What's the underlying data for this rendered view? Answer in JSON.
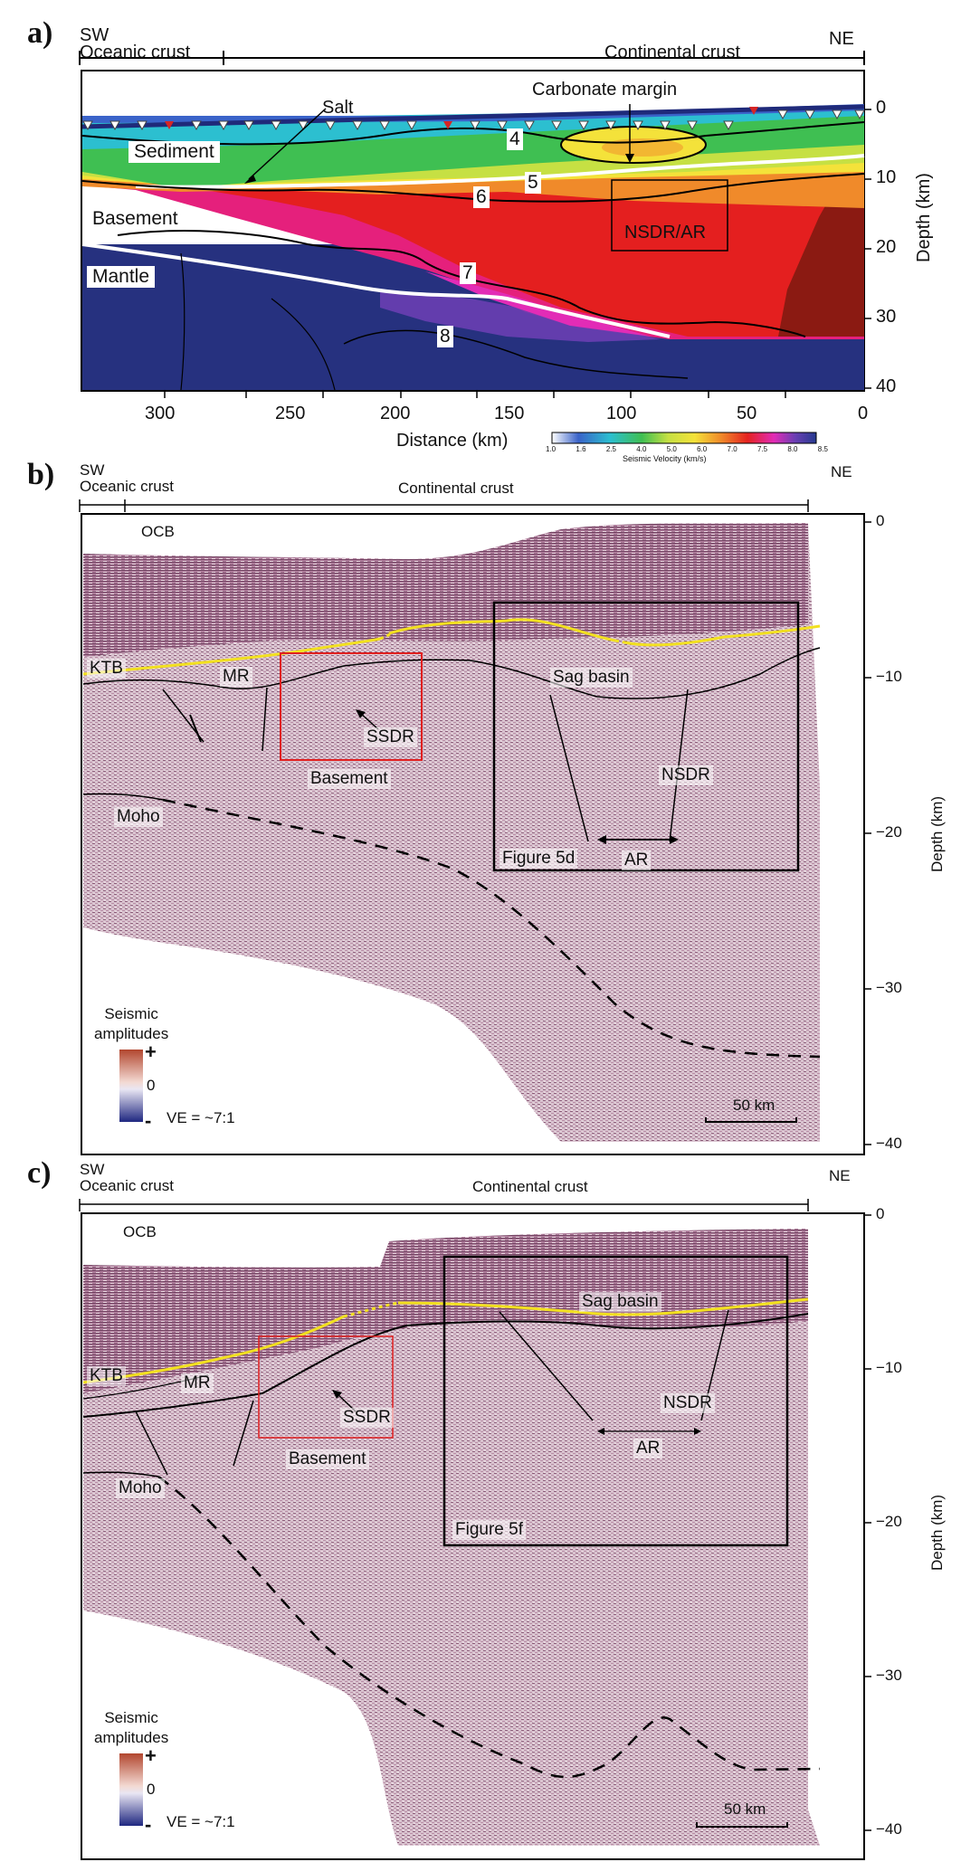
{
  "panels": {
    "a": {
      "letter": "a)",
      "sw": "SW",
      "ne": "NE",
      "oceanic": "Oceanic crust",
      "continental": "Continental crust",
      "salt": "Salt",
      "carbonate": "Carbonate margin",
      "sediment": "Sediment",
      "basement": "Basement",
      "mantle": "Mantle",
      "nsdr_ar": "NSDR/AR",
      "contours": [
        "4",
        "5",
        "6",
        "7",
        "8"
      ],
      "x_ticks": [
        "300",
        "250",
        "200",
        "150",
        "100",
        "50",
        "0"
      ],
      "x_label": "Distance (km)",
      "y_ticks": [
        "0",
        "10",
        "20",
        "30",
        "40"
      ],
      "y_label": "Depth (km)",
      "colorbar_ticks": [
        "1.0",
        "1.6",
        "2.5",
        "4.0",
        "5.0",
        "6.0",
        "7.0",
        "7.5",
        "8.0",
        "8.5"
      ],
      "colorbar_label": "Seismic Velocity (km/s)",
      "colorbar_colors": [
        "#ffffff",
        "#3a63c9",
        "#2cbfd0",
        "#3fbf52",
        "#c6e043",
        "#f4e23a",
        "#f08a2a",
        "#e52320",
        "#e22cb6",
        "#6a3fb3",
        "#263a8f"
      ]
    },
    "b": {
      "letter": "b)",
      "sw": "SW",
      "ne": "NE",
      "oceanic": "Oceanic crust",
      "continental": "Continental crust",
      "ocb": "OCB",
      "ktb": "KTB",
      "mr": "MR",
      "ssdr": "SSDR",
      "basement": "Basement",
      "moho": "Moho",
      "sag": "Sag basin",
      "nsdr": "NSDR",
      "ar": "AR",
      "figure": "Figure 5d",
      "amp_title": "Seismic\namplitudes",
      "amp_plus": "+",
      "amp_zero": "0",
      "amp_minus": "-",
      "ve": "VE = ~7:1",
      "scale": "50 km",
      "y_ticks": [
        "0",
        "−10",
        "−20",
        "−30",
        "−40"
      ],
      "y_label": "Depth (km)"
    },
    "c": {
      "letter": "c)",
      "sw": "SW",
      "ne": "NE",
      "oceanic": "Oceanic crust",
      "continental": "Continental crust",
      "ocb": "OCB",
      "ktb": "KTB",
      "mr": "MR",
      "ssdr": "SSDR",
      "basement": "Basement",
      "moho": "Moho",
      "sag": "Sag basin",
      "nsdr": "NSDR",
      "ar": "AR",
      "figure": "Figure 5f",
      "amp_title": "Seismic\namplitudes",
      "amp_plus": "+",
      "amp_zero": "0",
      "amp_minus": "-",
      "ve": "VE = ~7:1",
      "scale": "50 km",
      "y_ticks": [
        "0",
        "−10",
        "−20",
        "−30",
        "−40"
      ],
      "y_label": "Depth (km)"
    }
  }
}
